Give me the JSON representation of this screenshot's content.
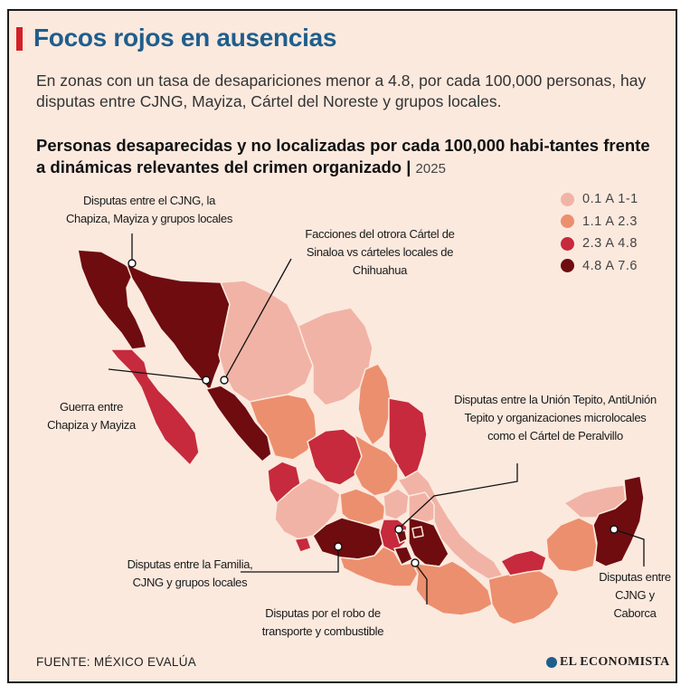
{
  "headline": "Focos rojos en ausencias",
  "dek": "En zonas con un tasa de desapariciones menor a 4.8, por cada 100,000 personas, hay disputas entre CJNG, Mayiza, Cártel del Noreste y grupos locales.",
  "chart_title": {
    "main": "Personas desaparecidas y no localizadas por cada 100,000 habi-tantes frente a dinámicas relevantes del crimen organizado",
    "separator": " | ",
    "year": "2025"
  },
  "legend": [
    {
      "label": "0.1 A 1-1",
      "color": "#f1b3a6"
    },
    {
      "label": "1.1 A 2.3",
      "color": "#ec8f6e"
    },
    {
      "label": "2.3 A 4.8",
      "color": "#c62a3c"
    },
    {
      "label": "4.8 A 7.6",
      "color": "#6e0c10"
    }
  ],
  "annotations": {
    "baja_california": "Disputas entre el CJNG, la Chapiza, Mayiza y grupos locales",
    "chihuahua": "Facciones del otrora Cártel de Sinaloa vs cárteles locales de Chihuahua",
    "sinaloa": "Guerra entre Chapiza y Mayiza",
    "cdmx": "Disputas entre la Unión Tepito, AntiUnión Tepito y organizaciones microlocales como el Cártel de Peralvillo",
    "michoacan": "Disputas entre la Familia, CJNG y grupos locales",
    "puebla": "Disputas por el robo de transporte y combustible",
    "quintana_roo": "Disputas entre CJNG y Caborca"
  },
  "footer": {
    "source": "FUENTE: MÉXICO EVALÚA",
    "brand": "EL ECONOMISTA"
  }
}
